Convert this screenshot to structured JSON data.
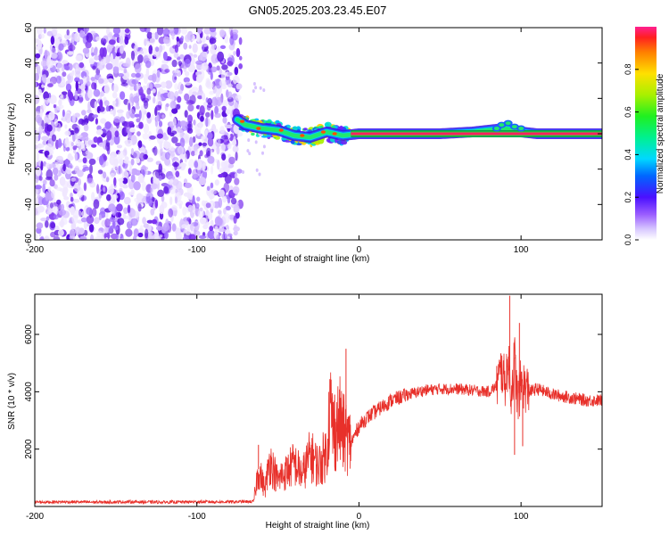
{
  "title": "GN05.2025.203.23.45.E07",
  "chart_data": [
    {
      "type": "heatmap",
      "xlabel": "Height of straight line (km)",
      "ylabel": "Frequency (Hz)",
      "xlim": [
        -200,
        150
      ],
      "ylim": [
        -60,
        60
      ],
      "xticks": [
        -200,
        -100,
        0,
        100
      ],
      "xtick_labels": [
        "-200",
        "-100",
        "0",
        "100"
      ],
      "yticks": [
        -60,
        -40,
        -20,
        0,
        20,
        40,
        60
      ],
      "ytick_labels": [
        "-60",
        "-40",
        "-20",
        "0",
        "20",
        "40",
        "60"
      ],
      "colorbar": {
        "label": "Normalized spectral amplitude",
        "range": [
          0,
          1
        ],
        "ticks": [
          0.0,
          0.2,
          0.4,
          0.6,
          0.8
        ],
        "tick_labels": [
          "0.0",
          "0.2",
          "0.4",
          "0.6",
          "0.8"
        ]
      },
      "regions": [
        {
          "x_range": [
            -200,
            -73
          ],
          "y_range": [
            -60,
            60
          ],
          "level": 0.1
        },
        {
          "x_range": [
            -73,
            -5
          ],
          "y_range": [
            -10,
            10
          ],
          "level": 0.4
        },
        {
          "x_range": [
            -5,
            150
          ],
          "y_range": [
            -1,
            1
          ],
          "level": 0.95
        }
      ],
      "ridge": {
        "x": [
          -75,
          -70,
          -60,
          -50,
          -40,
          -30,
          -20,
          -10,
          0,
          20,
          50,
          70,
          80,
          90,
          100,
          110,
          150
        ],
        "y": [
          8,
          5,
          3,
          2,
          -1,
          -2,
          1,
          -1,
          0,
          0,
          0,
          1,
          2,
          3,
          1,
          0,
          0
        ]
      }
    },
    {
      "type": "line",
      "xlabel": "Height of straight line (km)",
      "ylabel": "SNR (10 * v/v)",
      "xlim": [
        -200,
        150
      ],
      "ylim": [
        0,
        7400
      ],
      "xticks": [
        -200,
        -100,
        0,
        100
      ],
      "xtick_labels": [
        "-200",
        "-100",
        "0",
        "100"
      ],
      "yticks": [
        2000,
        4000,
        6000
      ],
      "ytick_labels": [
        "2000",
        "4000",
        "6000"
      ],
      "color": "#e8302a",
      "series": [
        {
          "x": [
            -200,
            -180,
            -160,
            -140,
            -120,
            -100,
            -80,
            -65,
            -62,
            -58,
            -55,
            -50,
            -45,
            -40,
            -35,
            -30,
            -25,
            -20,
            -18,
            -15,
            -12,
            -10,
            -5,
            0,
            5,
            10,
            20,
            30,
            40,
            50,
            60,
            70,
            80,
            85,
            88,
            90,
            92,
            94,
            96,
            98,
            100,
            105,
            110,
            120,
            130,
            140,
            150
          ],
          "y": [
            150,
            160,
            150,
            160,
            150,
            160,
            160,
            170,
            1300,
            600,
            1600,
            900,
            1200,
            1500,
            1100,
            1800,
            1400,
            1900,
            3500,
            2500,
            3000,
            2600,
            2200,
            2800,
            3100,
            3300,
            3700,
            3900,
            4050,
            4100,
            4100,
            4050,
            4000,
            4200,
            4800,
            4300,
            5000,
            3900,
            5200,
            3600,
            4300,
            4000,
            4100,
            3900,
            3800,
            3700,
            3700
          ]
        }
      ],
      "spikes": [
        {
          "x": -62,
          "y": 2150
        },
        {
          "x": -48,
          "y": 1500
        },
        {
          "x": -40,
          "y": 1700
        },
        {
          "x": -28,
          "y": 2000
        },
        {
          "x": -15,
          "y": 3900
        },
        {
          "x": -8,
          "y": 5500
        },
        {
          "x": 85,
          "y": 4900
        },
        {
          "x": 93,
          "y": 7350
        },
        {
          "x": 96,
          "y": 1800
        },
        {
          "x": 99,
          "y": 6400
        },
        {
          "x": 101,
          "y": 2100
        }
      ]
    }
  ]
}
